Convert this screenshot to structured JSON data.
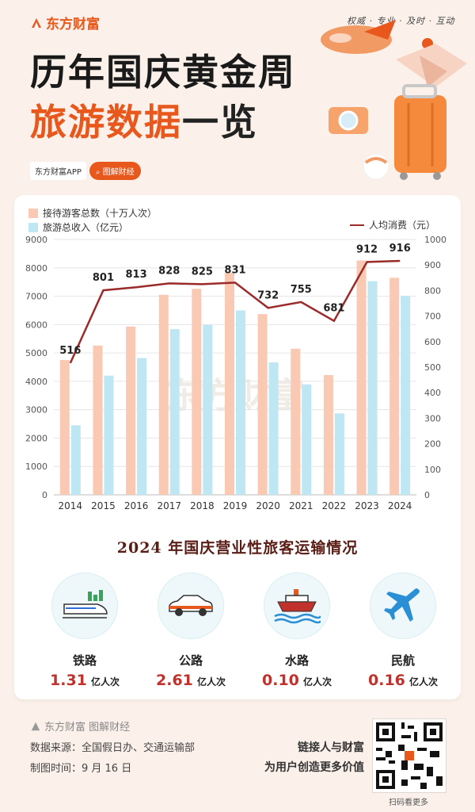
{
  "header": {
    "brand": "东方财富",
    "slogan": "权威 · 专业 · 及时 · 互动",
    "title_line1": "历年国庆黄金周",
    "title_line2_highlight": "旅游数据",
    "title_line2_rest": "一览",
    "app_label": "东方财富APP",
    "tag_label": "图解财经"
  },
  "colors": {
    "accent": "#e8571c",
    "bar_visitors": "#f9c9b4",
    "bar_income": "#bfe6f3",
    "line": "#9b2a2a",
    "number_red": "#c0322b",
    "section_title": "#5a1d16"
  },
  "chart_data": {
    "type": "bar",
    "categories": [
      "2014",
      "2015",
      "2016",
      "2017",
      "2018",
      "2019",
      "2020",
      "2021",
      "2022",
      "2023",
      "2024"
    ],
    "series": [
      {
        "name": "接待游客总数（十万人次）",
        "kind": "bar",
        "axis": "left",
        "values": [
          4750,
          5260,
          5930,
          7050,
          7260,
          7820,
          6370,
          5150,
          4220,
          8260,
          7650
        ]
      },
      {
        "name": "旅游总收入（亿元）",
        "kind": "bar",
        "axis": "left",
        "values": [
          2450,
          4200,
          4820,
          5840,
          5990,
          6500,
          4670,
          3890,
          2870,
          7530,
          7010
        ]
      },
      {
        "name": "人均消费（元）",
        "kind": "line",
        "axis": "right",
        "values": [
          516,
          801,
          813,
          828,
          825,
          831,
          732,
          755,
          681,
          912,
          916
        ]
      }
    ],
    "ylim_left": [
      0,
      9000
    ],
    "yticks_left": [
      "0",
      "1000",
      "2000",
      "3000",
      "4000",
      "5000",
      "6000",
      "7000",
      "8000",
      "9000"
    ],
    "ylim_right": [
      0,
      1000
    ],
    "yticks_right": [
      "0",
      "100",
      "200",
      "300",
      "400",
      "500",
      "600",
      "700",
      "800",
      "900",
      "1000"
    ],
    "watermark": "东方财富"
  },
  "section": {
    "title": "2024 年国庆营业性旅客运输情况",
    "modes": [
      {
        "name": "铁路",
        "value": "1.31",
        "unit": "亿人次",
        "icon": "train-icon"
      },
      {
        "name": "公路",
        "value": "2.61",
        "unit": "亿人次",
        "icon": "car-icon"
      },
      {
        "name": "水路",
        "value": "0.10",
        "unit": "亿人次",
        "icon": "ship-icon"
      },
      {
        "name": "民航",
        "value": "0.16",
        "unit": "亿人次",
        "icon": "airplane-icon"
      }
    ]
  },
  "footer": {
    "brand": "东方财富 图解财经",
    "source": "数据来源：全国假日办、交通运输部",
    "date": "制图时间：9 月 16 日",
    "tagline1": "链接人与财富",
    "tagline2": "为用户创造更多价值",
    "qr_label": "扫码看更多"
  }
}
